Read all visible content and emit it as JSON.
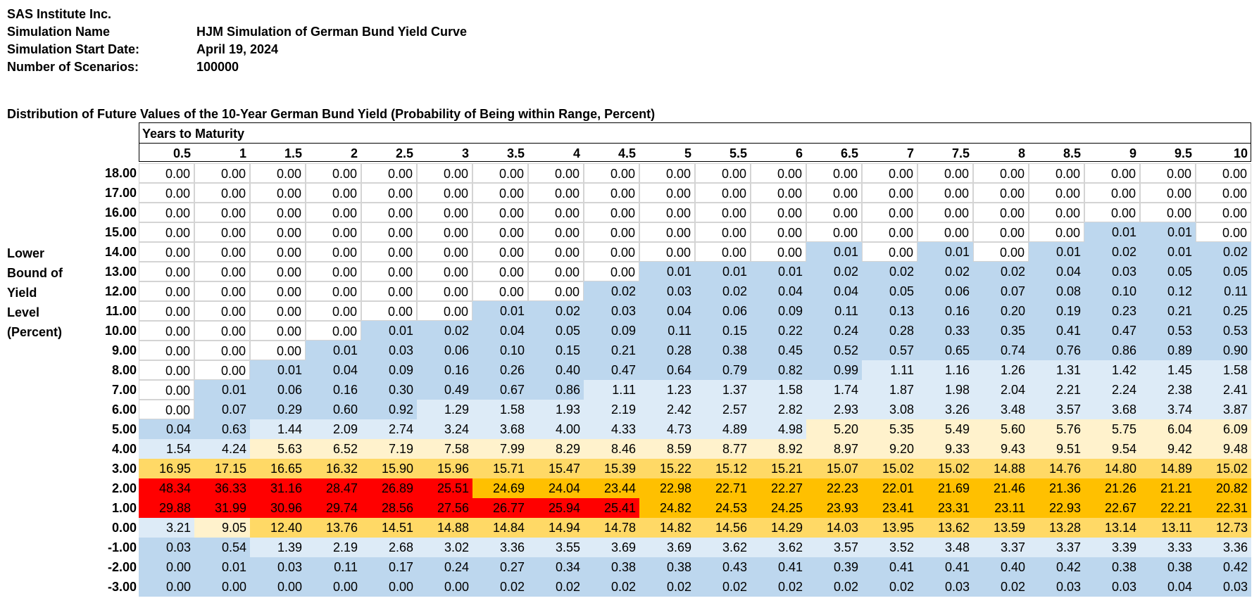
{
  "header": {
    "company": "SAS Institute Inc.",
    "sim_name_label": "Simulation Name",
    "sim_name": "HJM Simulation of German Bund Yield Curve",
    "start_label": "Simulation Start Date:",
    "start_date": "April 19, 2024",
    "scen_label": "Number of Scenarios:",
    "scenarios": "100000"
  },
  "table_title": "Distribution of Future Values of the 10-Year German Bund Yield (Probability of Being within Range, Percent)",
  "col_group_label": "Years to Maturity",
  "row_axis_label": [
    "Lower",
    "Bound of",
    "Yield",
    "Level",
    "(Percent)"
  ],
  "columns": [
    "0.5",
    "1",
    "1.5",
    "2",
    "2.5",
    "3",
    "3.5",
    "4",
    "4.5",
    "5",
    "5.5",
    "6",
    "6.5",
    "7",
    "7.5",
    "8",
    "8.5",
    "9",
    "9.5",
    "10"
  ],
  "rows": [
    {
      "label": "18.00",
      "values": [
        "0.00",
        "0.00",
        "0.00",
        "0.00",
        "0.00",
        "0.00",
        "0.00",
        "0.00",
        "0.00",
        "0.00",
        "0.00",
        "0.00",
        "0.00",
        "0.00",
        "0.00",
        "0.00",
        "0.00",
        "0.00",
        "0.00",
        "0.00"
      ]
    },
    {
      "label": "17.00",
      "values": [
        "0.00",
        "0.00",
        "0.00",
        "0.00",
        "0.00",
        "0.00",
        "0.00",
        "0.00",
        "0.00",
        "0.00",
        "0.00",
        "0.00",
        "0.00",
        "0.00",
        "0.00",
        "0.00",
        "0.00",
        "0.00",
        "0.00",
        "0.00"
      ]
    },
    {
      "label": "16.00",
      "values": [
        "0.00",
        "0.00",
        "0.00",
        "0.00",
        "0.00",
        "0.00",
        "0.00",
        "0.00",
        "0.00",
        "0.00",
        "0.00",
        "0.00",
        "0.00",
        "0.00",
        "0.00",
        "0.00",
        "0.00",
        "0.00",
        "0.00",
        "0.00"
      ]
    },
    {
      "label": "15.00",
      "values": [
        "0.00",
        "0.00",
        "0.00",
        "0.00",
        "0.00",
        "0.00",
        "0.00",
        "0.00",
        "0.00",
        "0.00",
        "0.00",
        "0.00",
        "0.00",
        "0.00",
        "0.00",
        "0.00",
        "0.00",
        "0.01",
        "0.01",
        "0.00"
      ]
    },
    {
      "label": "14.00",
      "values": [
        "0.00",
        "0.00",
        "0.00",
        "0.00",
        "0.00",
        "0.00",
        "0.00",
        "0.00",
        "0.00",
        "0.00",
        "0.00",
        "0.00",
        "0.01",
        "0.00",
        "0.01",
        "0.00",
        "0.01",
        "0.02",
        "0.01",
        "0.02"
      ]
    },
    {
      "label": "13.00",
      "values": [
        "0.00",
        "0.00",
        "0.00",
        "0.00",
        "0.00",
        "0.00",
        "0.00",
        "0.00",
        "0.00",
        "0.01",
        "0.01",
        "0.01",
        "0.02",
        "0.02",
        "0.02",
        "0.02",
        "0.04",
        "0.03",
        "0.05",
        "0.05"
      ]
    },
    {
      "label": "12.00",
      "values": [
        "0.00",
        "0.00",
        "0.00",
        "0.00",
        "0.00",
        "0.00",
        "0.00",
        "0.00",
        "0.02",
        "0.03",
        "0.02",
        "0.04",
        "0.04",
        "0.05",
        "0.06",
        "0.07",
        "0.08",
        "0.10",
        "0.12",
        "0.11"
      ]
    },
    {
      "label": "11.00",
      "values": [
        "0.00",
        "0.00",
        "0.00",
        "0.00",
        "0.00",
        "0.00",
        "0.01",
        "0.02",
        "0.03",
        "0.04",
        "0.06",
        "0.09",
        "0.11",
        "0.13",
        "0.16",
        "0.20",
        "0.19",
        "0.23",
        "0.21",
        "0.25"
      ]
    },
    {
      "label": "10.00",
      "values": [
        "0.00",
        "0.00",
        "0.00",
        "0.00",
        "0.01",
        "0.02",
        "0.04",
        "0.05",
        "0.09",
        "0.11",
        "0.15",
        "0.22",
        "0.24",
        "0.28",
        "0.33",
        "0.35",
        "0.41",
        "0.47",
        "0.53",
        "0.53"
      ]
    },
    {
      "label": "9.00",
      "values": [
        "0.00",
        "0.00",
        "0.00",
        "0.01",
        "0.03",
        "0.06",
        "0.10",
        "0.15",
        "0.21",
        "0.28",
        "0.38",
        "0.45",
        "0.52",
        "0.57",
        "0.65",
        "0.74",
        "0.76",
        "0.86",
        "0.89",
        "0.90"
      ]
    },
    {
      "label": "8.00",
      "values": [
        "0.00",
        "0.00",
        "0.01",
        "0.04",
        "0.09",
        "0.16",
        "0.26",
        "0.40",
        "0.47",
        "0.64",
        "0.79",
        "0.82",
        "0.99",
        "1.11",
        "1.16",
        "1.26",
        "1.31",
        "1.42",
        "1.45",
        "1.58"
      ]
    },
    {
      "label": "7.00",
      "values": [
        "0.00",
        "0.01",
        "0.06",
        "0.16",
        "0.30",
        "0.49",
        "0.67",
        "0.86",
        "1.11",
        "1.23",
        "1.37",
        "1.58",
        "1.74",
        "1.87",
        "1.98",
        "2.04",
        "2.21",
        "2.24",
        "2.38",
        "2.41"
      ]
    },
    {
      "label": "6.00",
      "values": [
        "0.00",
        "0.07",
        "0.29",
        "0.60",
        "0.92",
        "1.29",
        "1.58",
        "1.93",
        "2.19",
        "2.42",
        "2.57",
        "2.82",
        "2.93",
        "3.08",
        "3.26",
        "3.48",
        "3.57",
        "3.68",
        "3.74",
        "3.87"
      ]
    },
    {
      "label": "5.00",
      "values": [
        "0.04",
        "0.63",
        "1.44",
        "2.09",
        "2.74",
        "3.24",
        "3.68",
        "4.00",
        "4.33",
        "4.73",
        "4.89",
        "4.98",
        "5.20",
        "5.35",
        "5.49",
        "5.60",
        "5.76",
        "5.75",
        "6.04",
        "6.09"
      ]
    },
    {
      "label": "4.00",
      "values": [
        "1.54",
        "4.24",
        "5.63",
        "6.52",
        "7.19",
        "7.58",
        "7.99",
        "8.29",
        "8.46",
        "8.59",
        "8.77",
        "8.92",
        "8.97",
        "9.20",
        "9.33",
        "9.43",
        "9.51",
        "9.54",
        "9.42",
        "9.48"
      ]
    },
    {
      "label": "3.00",
      "values": [
        "16.95",
        "17.15",
        "16.65",
        "16.32",
        "15.90",
        "15.96",
        "15.71",
        "15.47",
        "15.39",
        "15.22",
        "15.12",
        "15.21",
        "15.07",
        "15.02",
        "15.02",
        "14.88",
        "14.76",
        "14.80",
        "14.89",
        "15.02"
      ]
    },
    {
      "label": "2.00",
      "values": [
        "48.34",
        "36.33",
        "31.16",
        "28.47",
        "26.89",
        "25.51",
        "24.69",
        "24.04",
        "23.44",
        "22.98",
        "22.71",
        "22.27",
        "22.23",
        "22.01",
        "21.69",
        "21.46",
        "21.36",
        "21.26",
        "21.21",
        "20.82"
      ]
    },
    {
      "label": "1.00",
      "values": [
        "29.88",
        "31.99",
        "30.96",
        "29.74",
        "28.56",
        "27.56",
        "26.77",
        "25.94",
        "25.41",
        "24.82",
        "24.53",
        "24.25",
        "23.93",
        "23.41",
        "23.31",
        "23.11",
        "22.93",
        "22.67",
        "22.21",
        "22.31"
      ]
    },
    {
      "label": "0.00",
      "values": [
        "3.21",
        "9.05",
        "12.40",
        "13.76",
        "14.51",
        "14.88",
        "14.84",
        "14.94",
        "14.78",
        "14.82",
        "14.56",
        "14.29",
        "14.03",
        "13.95",
        "13.62",
        "13.59",
        "13.28",
        "13.14",
        "13.11",
        "12.73"
      ]
    },
    {
      "label": "-1.00",
      "values": [
        "0.03",
        "0.54",
        "1.39",
        "2.19",
        "2.68",
        "3.02",
        "3.36",
        "3.55",
        "3.69",
        "3.69",
        "3.62",
        "3.62",
        "3.57",
        "3.52",
        "3.48",
        "3.37",
        "3.37",
        "3.39",
        "3.33",
        "3.36"
      ]
    },
    {
      "label": "-2.00",
      "values": [
        "0.00",
        "0.01",
        "0.03",
        "0.11",
        "0.17",
        "0.24",
        "0.27",
        "0.34",
        "0.38",
        "0.38",
        "0.43",
        "0.41",
        "0.39",
        "0.41",
        "0.41",
        "0.40",
        "0.42",
        "0.38",
        "0.38",
        "0.42"
      ]
    },
    {
      "label": "-3.00",
      "values": [
        "0.00",
        "0.00",
        "0.00",
        "0.00",
        "0.00",
        "0.00",
        "0.02",
        "0.02",
        "0.02",
        "0.02",
        "0.02",
        "0.02",
        "0.02",
        "0.02",
        "0.03",
        "0.02",
        "0.03",
        "0.03",
        "0.04",
        "0.03"
      ]
    }
  ],
  "colors": {
    "white": "#ffffff",
    "blue": "#bdd7ee",
    "lightblue": "#ddebf7",
    "cream": "#fff2cc",
    "yellow": "#ffd966",
    "orange": "#ffc000",
    "red": "#ff0000"
  }
}
